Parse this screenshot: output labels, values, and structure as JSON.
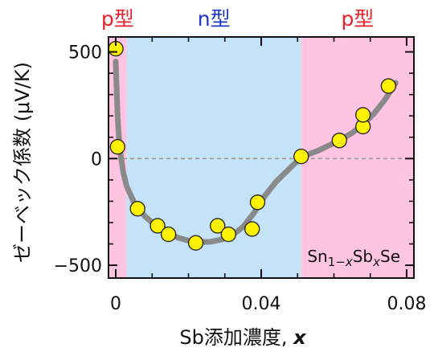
{
  "chart_data": {
    "type": "scatter",
    "xlabel_text": "Sb添加濃度, ",
    "xlabel_var": "x",
    "ylabel": "ゼーベック係数 (μV/K)",
    "xlim": [
      -0.002,
      0.082
    ],
    "ylim": [
      -560,
      570
    ],
    "x_ticks": [
      0,
      0.04,
      0.08
    ],
    "x_tick_labels": [
      "0",
      "0.04",
      "0.08"
    ],
    "y_ticks": [
      -500,
      0,
      500
    ],
    "y_tick_labels": [
      "−500",
      "0",
      "500"
    ],
    "grid": false,
    "zero_line": "dashed",
    "regions": [
      {
        "label": "p型",
        "from": -0.002,
        "to": 0.003,
        "color": "#ffc4e1",
        "label_color": "#e8212b"
      },
      {
        "label": "n型",
        "from": 0.003,
        "to": 0.051,
        "color": "#c4e2f8",
        "label_color": "#1d36c9"
      },
      {
        "label": "p型",
        "from": 0.051,
        "to": 0.082,
        "color": "#ffc4e1",
        "label_color": "#e8212b"
      }
    ],
    "legend": {
      "position": "bottom-right",
      "parts": [
        {
          "t": "Sn",
          "s": "normal"
        },
        {
          "t": "1−",
          "s": "sub"
        },
        {
          "t": "x",
          "s": "subitalic"
        },
        {
          "t": "Sb",
          "s": "normal"
        },
        {
          "t": "x",
          "s": "subitalic"
        },
        {
          "t": "Se",
          "s": "normal"
        }
      ]
    },
    "series": [
      {
        "marker_color": "#fff200",
        "points": [
          {
            "x": 0.0,
            "y": 515
          },
          {
            "x": 0.0005,
            "y": 55
          },
          {
            "x": 0.006,
            "y": -235
          },
          {
            "x": 0.0115,
            "y": -315
          },
          {
            "x": 0.0145,
            "y": -355
          },
          {
            "x": 0.022,
            "y": -395
          },
          {
            "x": 0.028,
            "y": -315
          },
          {
            "x": 0.031,
            "y": -355
          },
          {
            "x": 0.0375,
            "y": -330
          },
          {
            "x": 0.039,
            "y": -205
          },
          {
            "x": 0.051,
            "y": 10
          },
          {
            "x": 0.0615,
            "y": 85
          },
          {
            "x": 0.068,
            "y": 150
          },
          {
            "x": 0.068,
            "y": 205
          },
          {
            "x": 0.075,
            "y": 340
          }
        ]
      }
    ],
    "trend_line": {
      "color": "#8a8a8a",
      "points": [
        [
          0.0,
          455
        ],
        [
          0.0005,
          200
        ],
        [
          0.001,
          60
        ],
        [
          0.002,
          -60
        ],
        [
          0.003,
          -130
        ],
        [
          0.005,
          -205
        ],
        [
          0.008,
          -270
        ],
        [
          0.011,
          -315
        ],
        [
          0.014,
          -345
        ],
        [
          0.017,
          -370
        ],
        [
          0.02,
          -385
        ],
        [
          0.023,
          -392
        ],
        [
          0.026,
          -390
        ],
        [
          0.029,
          -380
        ],
        [
          0.032,
          -360
        ],
        [
          0.035,
          -320
        ],
        [
          0.038,
          -255
        ],
        [
          0.041,
          -175
        ],
        [
          0.044,
          -110
        ],
        [
          0.047,
          -60
        ],
        [
          0.05,
          -10
        ],
        [
          0.053,
          20
        ],
        [
          0.056,
          40
        ],
        [
          0.059,
          65
        ],
        [
          0.062,
          90
        ],
        [
          0.065,
          120
        ],
        [
          0.068,
          160
        ],
        [
          0.071,
          210
        ],
        [
          0.074,
          275
        ],
        [
          0.077,
          355
        ]
      ]
    }
  }
}
